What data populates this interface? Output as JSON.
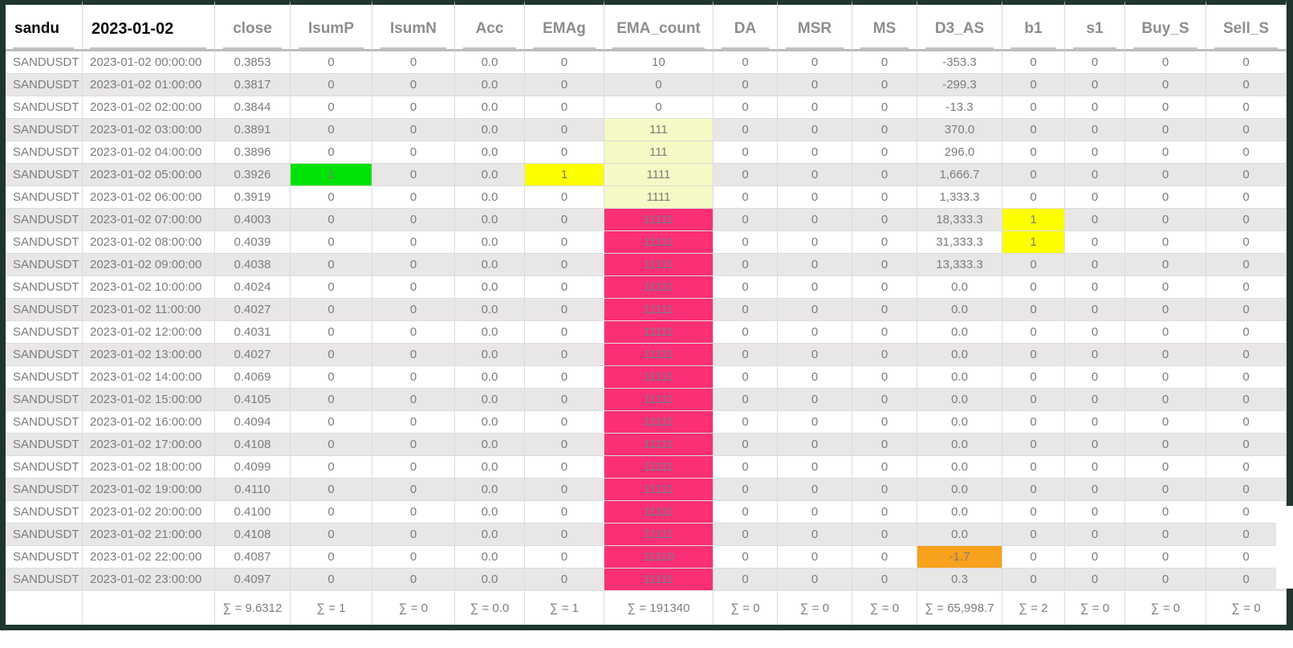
{
  "table": {
    "columns": [
      {
        "id": "sandu",
        "label": "sandu",
        "align": "left",
        "emphasis": "dark"
      },
      {
        "id": "date",
        "label": "2023-01-02",
        "align": "left",
        "emphasis": "dark"
      },
      {
        "id": "close",
        "label": "close",
        "align": "center",
        "emphasis": "gray"
      },
      {
        "id": "IsumP",
        "label": "IsumP",
        "align": "center",
        "emphasis": "gray"
      },
      {
        "id": "IsumN",
        "label": "IsumN",
        "align": "center",
        "emphasis": "gray"
      },
      {
        "id": "Acc",
        "label": "Acc",
        "align": "center",
        "emphasis": "gray"
      },
      {
        "id": "EMAg",
        "label": "EMAg",
        "align": "center",
        "emphasis": "gray"
      },
      {
        "id": "EMA_count",
        "label": "EMA_count",
        "align": "center",
        "emphasis": "gray"
      },
      {
        "id": "DA",
        "label": "DA",
        "align": "center",
        "emphasis": "gray"
      },
      {
        "id": "MSR",
        "label": "MSR",
        "align": "center",
        "emphasis": "gray"
      },
      {
        "id": "MS",
        "label": "MS",
        "align": "center",
        "emphasis": "gray"
      },
      {
        "id": "D3_AS",
        "label": "D3_AS",
        "align": "center",
        "emphasis": "gray"
      },
      {
        "id": "b1",
        "label": "b1",
        "align": "center",
        "emphasis": "gray"
      },
      {
        "id": "s1",
        "label": "s1",
        "align": "center",
        "emphasis": "gray"
      },
      {
        "id": "Buy_S",
        "label": "Buy_S",
        "align": "center",
        "emphasis": "gray"
      },
      {
        "id": "Sell_S",
        "label": "Sell_S",
        "align": "center",
        "emphasis": "gray"
      }
    ],
    "rows": [
      {
        "cells": [
          "SANDUSDT",
          "2023-01-02 00:00:00",
          "0.3853",
          "0",
          "0",
          "0.0",
          "0",
          "10",
          "0",
          "0",
          "0",
          "-353.3",
          "0",
          "0",
          "0",
          "0"
        ]
      },
      {
        "cells": [
          "SANDUSDT",
          "2023-01-02 01:00:00",
          "0.3817",
          "0",
          "0",
          "0.0",
          "0",
          "0",
          "0",
          "0",
          "0",
          "-299.3",
          "0",
          "0",
          "0",
          "0"
        ]
      },
      {
        "cells": [
          "SANDUSDT",
          "2023-01-02 02:00:00",
          "0.3844",
          "0",
          "0",
          "0.0",
          "0",
          "0",
          "0",
          "0",
          "0",
          "-13.3",
          "0",
          "0",
          "0",
          "0"
        ]
      },
      {
        "cells": [
          "SANDUSDT",
          "2023-01-02 03:00:00",
          "0.3891",
          "0",
          "0",
          "0.0",
          "0",
          "111",
          "0",
          "0",
          "0",
          "370.0",
          "0",
          "0",
          "0",
          "0"
        ]
      },
      {
        "cells": [
          "SANDUSDT",
          "2023-01-02 04:00:00",
          "0.3896",
          "0",
          "0",
          "0.0",
          "0",
          "111",
          "0",
          "0",
          "0",
          "296.0",
          "0",
          "0",
          "0",
          "0"
        ]
      },
      {
        "cells": [
          "SANDUSDT",
          "2023-01-02 05:00:00",
          "0.3926",
          "1",
          "0",
          "0.0",
          "1",
          "1111",
          "0",
          "0",
          "0",
          "1,666.7",
          "0",
          "0",
          "0",
          "0"
        ]
      },
      {
        "cells": [
          "SANDUSDT",
          "2023-01-02 06:00:00",
          "0.3919",
          "0",
          "0",
          "0.0",
          "0",
          "1111",
          "0",
          "0",
          "0",
          "1,333.3",
          "0",
          "0",
          "0",
          "0"
        ]
      },
      {
        "cells": [
          "SANDUSDT",
          "2023-01-02 07:00:00",
          "0.4003",
          "0",
          "0",
          "0.0",
          "0",
          "11111",
          "0",
          "0",
          "0",
          "18,333.3",
          "1",
          "0",
          "0",
          "0"
        ]
      },
      {
        "cells": [
          "SANDUSDT",
          "2023-01-02 08:00:00",
          "0.4039",
          "0",
          "0",
          "0.0",
          "0",
          "11111",
          "0",
          "0",
          "0",
          "31,333.3",
          "1",
          "0",
          "0",
          "0"
        ]
      },
      {
        "cells": [
          "SANDUSDT",
          "2023-01-02 09:00:00",
          "0.4038",
          "0",
          "0",
          "0.0",
          "0",
          "11111",
          "0",
          "0",
          "0",
          "13,333.3",
          "0",
          "0",
          "0",
          "0"
        ]
      },
      {
        "cells": [
          "SANDUSDT",
          "2023-01-02 10:00:00",
          "0.4024",
          "0",
          "0",
          "0.0",
          "0",
          "11111",
          "0",
          "0",
          "0",
          "0.0",
          "0",
          "0",
          "0",
          "0"
        ]
      },
      {
        "cells": [
          "SANDUSDT",
          "2023-01-02 11:00:00",
          "0.4027",
          "0",
          "0",
          "0.0",
          "0",
          "11111",
          "0",
          "0",
          "0",
          "0.0",
          "0",
          "0",
          "0",
          "0"
        ]
      },
      {
        "cells": [
          "SANDUSDT",
          "2023-01-02 12:00:00",
          "0.4031",
          "0",
          "0",
          "0.0",
          "0",
          "11111",
          "0",
          "0",
          "0",
          "0.0",
          "0",
          "0",
          "0",
          "0"
        ]
      },
      {
        "cells": [
          "SANDUSDT",
          "2023-01-02 13:00:00",
          "0.4027",
          "0",
          "0",
          "0.0",
          "0",
          "11111",
          "0",
          "0",
          "0",
          "0.0",
          "0",
          "0",
          "0",
          "0"
        ]
      },
      {
        "cells": [
          "SANDUSDT",
          "2023-01-02 14:00:00",
          "0.4069",
          "0",
          "0",
          "0.0",
          "0",
          "11111",
          "0",
          "0",
          "0",
          "0.0",
          "0",
          "0",
          "0",
          "0"
        ]
      },
      {
        "cells": [
          "SANDUSDT",
          "2023-01-02 15:00:00",
          "0.4105",
          "0",
          "0",
          "0.0",
          "0",
          "11111",
          "0",
          "0",
          "0",
          "0.0",
          "0",
          "0",
          "0",
          "0"
        ]
      },
      {
        "cells": [
          "SANDUSDT",
          "2023-01-02 16:00:00",
          "0.4094",
          "0",
          "0",
          "0.0",
          "0",
          "11111",
          "0",
          "0",
          "0",
          "0.0",
          "0",
          "0",
          "0",
          "0"
        ]
      },
      {
        "cells": [
          "SANDUSDT",
          "2023-01-02 17:00:00",
          "0.4108",
          "0",
          "0",
          "0.0",
          "0",
          "11111",
          "0",
          "0",
          "0",
          "0.0",
          "0",
          "0",
          "0",
          "0"
        ]
      },
      {
        "cells": [
          "SANDUSDT",
          "2023-01-02 18:00:00",
          "0.4099",
          "0",
          "0",
          "0.0",
          "0",
          "11111",
          "0",
          "0",
          "0",
          "0.0",
          "0",
          "0",
          "0",
          "0"
        ]
      },
      {
        "cells": [
          "SANDUSDT",
          "2023-01-02 19:00:00",
          "0.4110",
          "0",
          "0",
          "0.0",
          "0",
          "11111",
          "0",
          "0",
          "0",
          "0.0",
          "0",
          "0",
          "0",
          "0"
        ]
      },
      {
        "cells": [
          "SANDUSDT",
          "2023-01-02 20:00:00",
          "0.4100",
          "0",
          "0",
          "0.0",
          "0",
          "11111",
          "0",
          "0",
          "0",
          "0.0",
          "0",
          "0",
          "0",
          "0"
        ]
      },
      {
        "cells": [
          "SANDUSDT",
          "2023-01-02 21:00:00",
          "0.4108",
          "0",
          "0",
          "0.0",
          "0",
          "11111",
          "0",
          "0",
          "0",
          "0.0",
          "0",
          "0",
          "0",
          "0"
        ]
      },
      {
        "cells": [
          "SANDUSDT",
          "2023-01-02 22:00:00",
          "0.4087",
          "0",
          "0",
          "0.0",
          "0",
          "11110",
          "0",
          "0",
          "0",
          "-1.7",
          "0",
          "0",
          "0",
          "0"
        ]
      },
      {
        "cells": [
          "SANDUSDT",
          "2023-01-02 23:00:00",
          "0.4097",
          "0",
          "0",
          "0.0",
          "0",
          "11111",
          "0",
          "0",
          "0",
          "0.3",
          "0",
          "0",
          "0",
          "0"
        ]
      }
    ],
    "footer": {
      "cells": [
        "",
        "",
        "∑ = 9.6312",
        "∑ = 1",
        "∑ = 0",
        "∑ = 0.0",
        "∑ = 1",
        "∑ = 191340",
        "∑ = 0",
        "∑ = 0",
        "∑ = 0",
        "∑ = 65,998.7",
        "∑ = 2",
        "∑ = 0",
        "∑ = 0",
        "∑ = 0"
      ]
    },
    "highlights": [
      {
        "row": 5,
        "col": 3,
        "color": "green"
      },
      {
        "row": 5,
        "col": 6,
        "color": "bright_yellow"
      },
      {
        "row": 3,
        "col": 7,
        "color": "pale_yellow"
      },
      {
        "row": 4,
        "col": 7,
        "color": "pale_yellow"
      },
      {
        "row": 5,
        "col": 7,
        "color": "pale_yellow"
      },
      {
        "row": 6,
        "col": 7,
        "color": "pale_yellow"
      },
      {
        "row": 7,
        "col": 7,
        "color": "pink"
      },
      {
        "row": 8,
        "col": 7,
        "color": "pink"
      },
      {
        "row": 9,
        "col": 7,
        "color": "pink"
      },
      {
        "row": 10,
        "col": 7,
        "color": "pink"
      },
      {
        "row": 11,
        "col": 7,
        "color": "pink"
      },
      {
        "row": 12,
        "col": 7,
        "color": "pink"
      },
      {
        "row": 13,
        "col": 7,
        "color": "pink"
      },
      {
        "row": 14,
        "col": 7,
        "color": "pink"
      },
      {
        "row": 15,
        "col": 7,
        "color": "pink"
      },
      {
        "row": 16,
        "col": 7,
        "color": "pink"
      },
      {
        "row": 17,
        "col": 7,
        "color": "pink"
      },
      {
        "row": 18,
        "col": 7,
        "color": "pink"
      },
      {
        "row": 19,
        "col": 7,
        "color": "pink"
      },
      {
        "row": 20,
        "col": 7,
        "color": "pink"
      },
      {
        "row": 21,
        "col": 7,
        "color": "pink"
      },
      {
        "row": 22,
        "col": 7,
        "color": "pink"
      },
      {
        "row": 23,
        "col": 7,
        "color": "pink"
      },
      {
        "row": 7,
        "col": 12,
        "color": "bright_yellow"
      },
      {
        "row": 8,
        "col": 12,
        "color": "bright_yellow"
      },
      {
        "row": 22,
        "col": 11,
        "color": "orange"
      }
    ]
  },
  "colors": {
    "green": "#00e105",
    "bright_yellow": "#fdfe00",
    "pale_yellow": "#f5f9c5",
    "pink": "#fb2f76",
    "pink_text": "#6f7d8c",
    "orange": "#f8a11c",
    "frame_dark": "#1f3630",
    "row_stripe": "#e9e6e6"
  }
}
